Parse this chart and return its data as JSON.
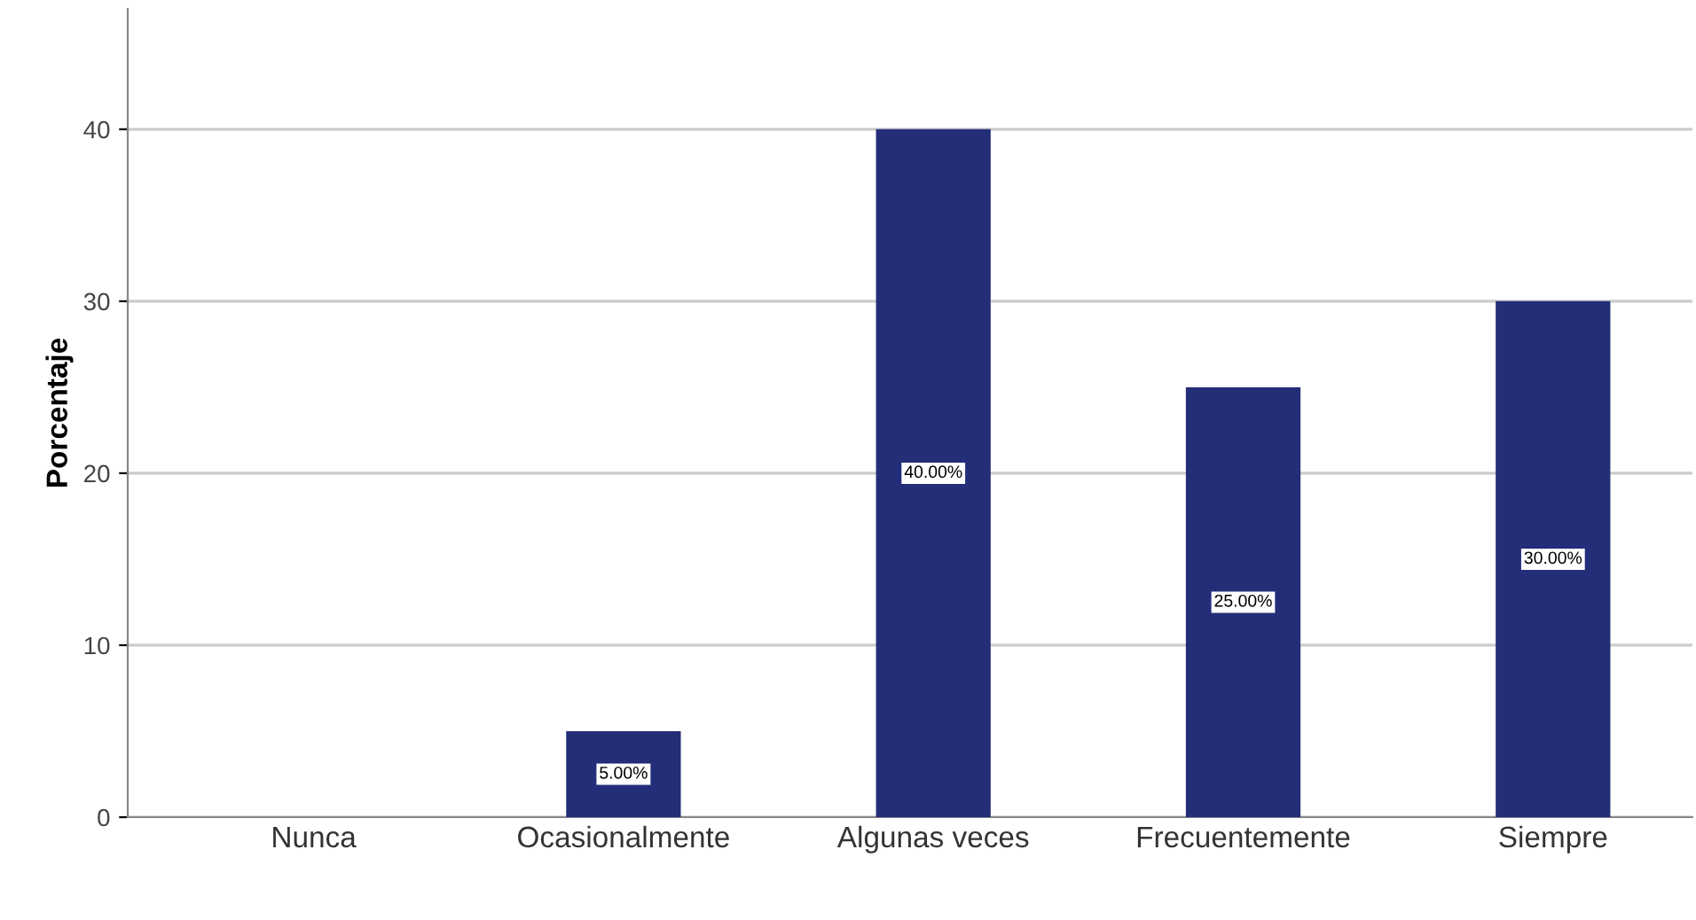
{
  "chart_data": {
    "type": "bar",
    "ylabel": "Porcentaje",
    "categories": [
      "Nunca",
      "Ocasionalmente",
      "Algunas veces",
      "Frecuentemente",
      "Siempre"
    ],
    "values": [
      0,
      5,
      40,
      25,
      30
    ],
    "value_labels": [
      null,
      "5.00%",
      "40.00%",
      "25.00%",
      "30.00%"
    ],
    "color": "#232d78",
    "ylim": [
      0,
      47
    ],
    "yticks": [
      0,
      10,
      20,
      30,
      40
    ],
    "grid": "y",
    "legend": false
  }
}
